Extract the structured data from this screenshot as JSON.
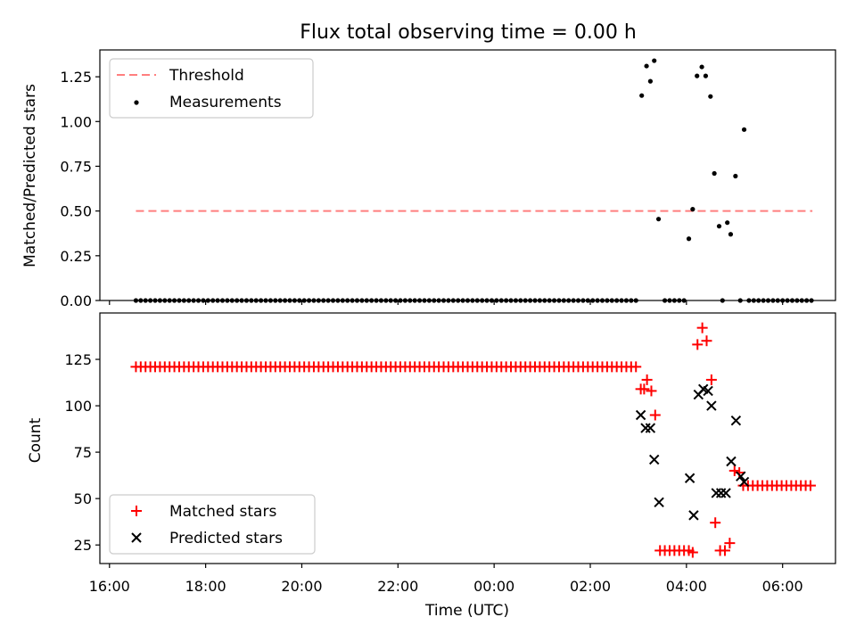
{
  "chart_data": [
    {
      "type": "scatter",
      "title": "Flux total observing time = 0.00 h",
      "xlabel": "",
      "ylabel": "Matched/Predicted stars",
      "ylim": [
        0,
        1.4
      ],
      "yticks": [
        0.0,
        0.25,
        0.5,
        0.75,
        1.0,
        1.25
      ],
      "ytick_labels": [
        "0.00",
        "0.25",
        "0.50",
        "0.75",
        "1.00",
        "1.25"
      ],
      "x_unit": "hours since 16:00 UTC",
      "xlim": [
        -0.2,
        15.1
      ],
      "xticks": [
        0,
        2,
        4,
        6,
        8,
        10,
        12,
        14
      ],
      "legend": {
        "placement": "upper-left",
        "entries": [
          "Threshold",
          "Measurements"
        ]
      },
      "series": [
        {
          "name": "Threshold",
          "kind": "dashed-line",
          "color": "#ff7f7f",
          "x": [
            0.55,
            14.62
          ],
          "y": [
            0.5,
            0.5
          ]
        },
        {
          "name": "Measurements",
          "kind": "dot",
          "color": "#000000",
          "x_zero_run": {
            "from": 0.55,
            "to": 10.95,
            "step": 0.1
          },
          "points": [
            [
              11.07,
              1.145
            ],
            [
              11.17,
              1.31
            ],
            [
              11.25,
              1.225
            ],
            [
              11.33,
              1.34
            ],
            [
              11.42,
              0.455
            ],
            [
              11.55,
              0.0
            ],
            [
              11.65,
              0.0
            ],
            [
              11.75,
              0.0
            ],
            [
              11.85,
              0.0
            ],
            [
              11.95,
              0.0
            ],
            [
              12.05,
              0.345
            ],
            [
              12.13,
              0.51
            ],
            [
              12.22,
              1.255
            ],
            [
              12.32,
              1.305
            ],
            [
              12.4,
              1.255
            ],
            [
              12.5,
              1.14
            ],
            [
              12.58,
              0.71
            ],
            [
              12.68,
              0.415
            ],
            [
              12.75,
              0.0
            ],
            [
              12.85,
              0.435
            ],
            [
              12.92,
              0.37
            ],
            [
              13.02,
              0.695
            ],
            [
              13.12,
              0.0
            ],
            [
              13.2,
              0.955
            ],
            [
              13.3,
              0.0
            ],
            [
              13.4,
              0.0
            ],
            [
              13.5,
              0.0
            ],
            [
              13.6,
              0.0
            ],
            [
              13.7,
              0.0
            ],
            [
              13.8,
              0.0
            ],
            [
              13.9,
              0.0
            ],
            [
              14.0,
              0.0
            ],
            [
              14.1,
              0.0
            ],
            [
              14.2,
              0.0
            ],
            [
              14.3,
              0.0
            ],
            [
              14.4,
              0.0
            ],
            [
              14.5,
              0.0
            ],
            [
              14.6,
              0.0
            ]
          ]
        }
      ]
    },
    {
      "type": "scatter",
      "title": "",
      "xlabel": "Time (UTC)",
      "ylabel": "Count",
      "ylim": [
        15,
        150
      ],
      "yticks": [
        25,
        50,
        75,
        100,
        125
      ],
      "ytick_labels": [
        "25",
        "50",
        "75",
        "100",
        "125"
      ],
      "x_unit": "hours since 16:00 UTC",
      "xlim": [
        -0.2,
        15.1
      ],
      "xticks": [
        0,
        2,
        4,
        6,
        8,
        10,
        12,
        14
      ],
      "xtick_labels": [
        "16:00",
        "18:00",
        "20:00",
        "22:00",
        "00:00",
        "02:00",
        "04:00",
        "06:00"
      ],
      "legend": {
        "placement": "lower-left",
        "entries": [
          "Matched stars",
          "Predicted stars"
        ]
      },
      "series": [
        {
          "name": "Matched stars",
          "kind": "plus",
          "color": "#ff0000",
          "constant_run": {
            "from": 0.55,
            "to": 10.95,
            "step": 0.1,
            "y": 121
          },
          "points": [
            [
              11.05,
              109
            ],
            [
              11.12,
              109
            ],
            [
              11.18,
              114
            ],
            [
              11.27,
              108
            ],
            [
              11.35,
              95
            ],
            [
              11.45,
              22
            ],
            [
              11.55,
              22
            ],
            [
              11.65,
              22
            ],
            [
              11.75,
              22
            ],
            [
              11.85,
              22
            ],
            [
              11.95,
              22
            ],
            [
              12.05,
              22
            ],
            [
              12.13,
              21
            ],
            [
              12.23,
              133
            ],
            [
              12.33,
              142
            ],
            [
              12.42,
              135
            ],
            [
              12.52,
              114
            ],
            [
              12.6,
              37
            ],
            [
              12.7,
              22
            ],
            [
              12.8,
              22
            ],
            [
              12.9,
              26
            ],
            [
              13.0,
              65
            ],
            [
              13.1,
              64
            ],
            [
              13.18,
              57
            ],
            [
              13.28,
              57
            ],
            [
              13.38,
              57
            ],
            [
              13.48,
              57
            ],
            [
              13.58,
              57
            ],
            [
              13.68,
              57
            ],
            [
              13.78,
              57
            ],
            [
              13.88,
              57
            ],
            [
              13.98,
              57
            ],
            [
              14.08,
              57
            ],
            [
              14.18,
              57
            ],
            [
              14.28,
              57
            ],
            [
              14.38,
              57
            ],
            [
              14.48,
              57
            ],
            [
              14.58,
              57
            ]
          ]
        },
        {
          "name": "Predicted stars",
          "kind": "cross",
          "color": "#000000",
          "points": [
            [
              11.05,
              95
            ],
            [
              11.15,
              88
            ],
            [
              11.25,
              88
            ],
            [
              11.33,
              71
            ],
            [
              11.43,
              48
            ],
            [
              12.07,
              61
            ],
            [
              12.15,
              41
            ],
            [
              12.25,
              106
            ],
            [
              12.35,
              109
            ],
            [
              12.45,
              108
            ],
            [
              12.52,
              100
            ],
            [
              12.62,
              53
            ],
            [
              12.72,
              53
            ],
            [
              12.82,
              53
            ],
            [
              12.93,
              70
            ],
            [
              13.03,
              92
            ],
            [
              13.13,
              62
            ],
            [
              13.2,
              59
            ]
          ]
        }
      ]
    }
  ]
}
